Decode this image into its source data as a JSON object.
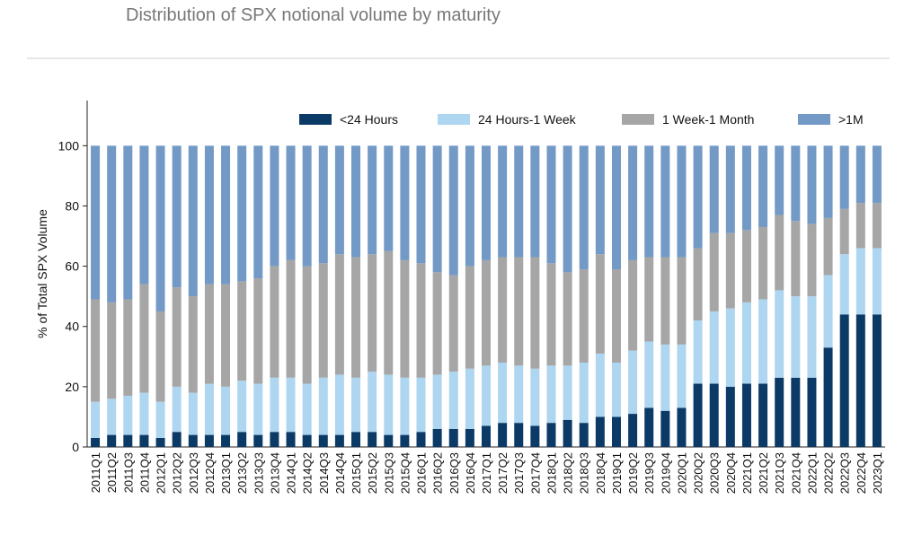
{
  "chart_data": {
    "type": "stacked-bar",
    "title": "Distribution of SPX notional volume by maturity",
    "y_label": "% of Total SPX Volume",
    "categories": [
      "2011Q1",
      "2011Q2",
      "2011Q3",
      "2011Q4",
      "2012Q1",
      "2012Q2",
      "2012Q3",
      "2012Q4",
      "2013Q1",
      "2013Q2",
      "2013Q3",
      "2013Q4",
      "2014Q1",
      "2014Q2",
      "2014Q3",
      "2014Q4",
      "2015Q1",
      "2015Q2",
      "2015Q3",
      "2015Q4",
      "2016Q1",
      "2016Q2",
      "2016Q3",
      "2016Q4",
      "2017Q1",
      "2017Q2",
      "2017Q3",
      "2017Q4",
      "2018Q1",
      "2018Q2",
      "2018Q3",
      "2018Q4",
      "2019Q1",
      "2019Q2",
      "2019Q3",
      "2019Q4",
      "2020Q1",
      "2020Q2",
      "2020Q3",
      "2020Q4",
      "2021Q1",
      "2021Q2",
      "2021Q3",
      "2021Q4",
      "2022Q1",
      "2022Q2",
      "2022Q3",
      "2022Q4",
      "2023Q1"
    ],
    "series": [
      {
        "name": "<24 Hours",
        "color": "#0b3a66",
        "values": [
          3,
          4,
          4,
          4,
          3,
          5,
          4,
          4,
          4,
          5,
          4,
          5,
          5,
          4,
          4,
          4,
          5,
          5,
          4,
          4,
          5,
          6,
          6,
          6,
          7,
          8,
          8,
          7,
          8,
          9,
          8,
          10,
          10,
          11,
          13,
          12,
          13,
          21,
          21,
          20,
          21,
          21,
          23,
          23,
          23,
          33,
          44,
          44,
          44
        ]
      },
      {
        "name": "24 Hours-1 Week",
        "color": "#aed6f1",
        "values": [
          12,
          12,
          13,
          14,
          12,
          15,
          14,
          17,
          16,
          17,
          17,
          18,
          18,
          17,
          19,
          20,
          18,
          20,
          20,
          19,
          18,
          18,
          19,
          20,
          20,
          20,
          19,
          19,
          19,
          18,
          20,
          21,
          18,
          21,
          22,
          22,
          21,
          21,
          24,
          26,
          27,
          28,
          29,
          27,
          27,
          24,
          20,
          22,
          22
        ]
      },
      {
        "name": "1 Week-1 Month",
        "color": "#a6a6a6",
        "values": [
          34,
          32,
          32,
          36,
          30,
          33,
          32,
          33,
          34,
          33,
          35,
          37,
          39,
          39,
          38,
          40,
          40,
          39,
          41,
          39,
          38,
          34,
          32,
          34,
          35,
          35,
          36,
          37,
          34,
          31,
          31,
          33,
          31,
          30,
          28,
          29,
          29,
          24,
          26,
          25,
          24,
          24,
          25,
          25,
          24,
          19,
          15,
          15,
          15
        ]
      },
      {
        "name": ">1M",
        "color": "#7399c6",
        "values": [
          51,
          52,
          51,
          46,
          55,
          47,
          50,
          46,
          46,
          45,
          44,
          40,
          38,
          40,
          39,
          36,
          37,
          36,
          35,
          38,
          39,
          42,
          43,
          40,
          38,
          37,
          37,
          37,
          39,
          42,
          41,
          36,
          41,
          38,
          37,
          37,
          37,
          34,
          29,
          29,
          28,
          27,
          23,
          25,
          26,
          24,
          21,
          19,
          19
        ]
      }
    ],
    "ylim": [
      0,
      115
    ],
    "yticks": [
      0,
      20,
      40,
      60,
      80,
      100
    ],
    "grid": false,
    "legend": "top"
  }
}
